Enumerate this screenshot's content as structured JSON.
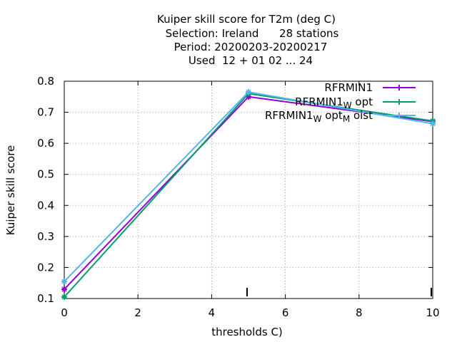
{
  "chart_data": {
    "type": "line",
    "title_lines": [
      "Kuiper skill score  for T2m (deg C)",
      "Selection: Ireland      28 stations",
      "Period: 20200203-20200217",
      "Used  12 + 01 02 ... 24"
    ],
    "xlabel": "thresholds C)",
    "ylabel": "Kuiper skill score",
    "xlim": [
      0,
      10
    ],
    "ylim": [
      0.1,
      0.8
    ],
    "xticks": [
      "0",
      "2",
      "4",
      "6",
      "8",
      "10"
    ],
    "yticks": [
      "0.1",
      "0.2",
      "0.3",
      "0.4",
      "0.5",
      "0.6",
      "0.7",
      "0.8"
    ],
    "grid": true,
    "legend_position": "top-right",
    "legend_labels": [
      "RFRMIN1",
      "RFRMIN1_W opt",
      "RFRMIN1_W opt_M oist"
    ],
    "series": [
      {
        "name": "RFRMIN1",
        "color": "#9400d3",
        "x": [
          0,
          5,
          10
        ],
        "values": [
          0.13,
          0.75,
          0.67
        ]
      },
      {
        "name": "RFRMIN1_W opt",
        "color": "#009e73",
        "x": [
          0,
          5,
          10
        ],
        "values": [
          0.105,
          0.76,
          0.672
        ]
      },
      {
        "name": "RFRMIN1_W opt_M oist",
        "color": "#56b4e9",
        "x": [
          0,
          5,
          10
        ],
        "values": [
          0.155,
          0.765,
          0.663
        ]
      }
    ]
  }
}
